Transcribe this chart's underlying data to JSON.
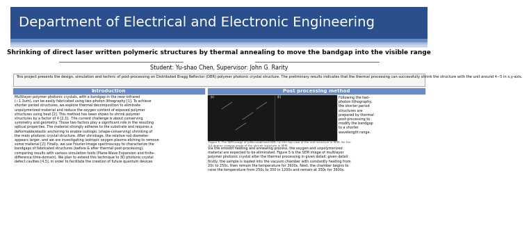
{
  "header_bg_color": "#2B4E8C",
  "header_text": "Department of Electrical and Electronic Engineering",
  "header_text_color": "#FFFFFF",
  "stripe1_color": "#6A8CC4",
  "stripe2_color": "#A8B8D8",
  "stripe3_color": "#C8D4E8",
  "title_text": "Shrinking of direct laser written polymeric structures by thermal annealing to move the bandgap into the visible range",
  "author_text": "Student: Yu-shao Chen, Supervisor: John G. Rarity",
  "abstract_text": "This project presents the design, simulation and technic of post-processing on Distributed Bragg Reflector (DBR) polymer photonic crystal structure. The preliminary results indicates that the thermal processing can successfully shrink the structure with the unit around 4~5 in x,y-axis.",
  "intro_header_text": "Introduction",
  "intro_header_bg": "#6A8CC4",
  "intro_body": "Multilayer polymer photonic crystals, with a bandgap in the near-infrared\n(~1.3um), can be easily fabricated using two-photon lithography [1]. To achieve\nshorter period structures, we explore thermal decomposition to eliminate\nunpolymerized material and reduce the oxygen content of exposed polymer\nstructures using heat [2]. This method has been shown to shrink polymer\nstructures by a factor of 4 [2,3].  The current challenge is about conserving\nsymmetry and geometry. Those two factors play a significant role in the resulting\noptical properties. The material strongly adheres to the substrate and requires a\ndeformable/elastic anchoring to enable isotropic (shape-conserving) shrinking of\nthe main photonic crystal structure. After shrinkage, the relative rod diameter\nappears larger, and we are investigating isotropic oxygen plasma etching to remove\nsome material [2]. Finally, we use Fourier-Image spectroscopy to characterize the\nbandgaps of fabricated structures (before & after thermal post-processing),\ncomparing results with various simulation tools (Plane-Wave Expansion and finite-\ndifference time-domain). We plan to extend this technique to 3D photonic crystal\ndefect cavities [4,5], in order to facilitate the creation of future quantum devices",
  "postproc_header_text": "Post processing method",
  "postproc_header_bg": "#6A8CC4",
  "postproc_right_text": "Following the two-\nphoton lithography,\nthe shorter period\nstructures are\nprepared by thermal\npost-processing to\nmodify the bandgap\nto a shorter\nwavelength range.",
  "postproc_body": "Via the smooth heating and annealing process, the oxygen and unpolymerized\nmaterial are expected to be eliminated. Figure 5 is the SEM image of multilayer\npolymer photonic crystal after the thermal processing in given detail: given detail:\nfirstly, the sample is loaded into the vacuum chamber with constantly heating from\n20c to 250c, then remain the temperature for 3600s. Next, the chamber begins to\nraise the temperature from 250c to 350 in 1200s and remain at 350c for 3600s.",
  "fig_caption": "Figure 5. The SEM image of pillar-stabilised DBR: (a) the top view of the unit structure in SEM; (b) the\n54-degree viewing angle of the shrunk structure in SEM.",
  "bg_color": "#EBEBEB",
  "content_bg": "#FFFFFF",
  "border_color": "#999999"
}
